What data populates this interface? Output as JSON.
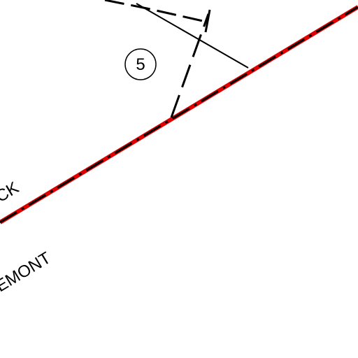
{
  "map": {
    "parcel_label": "5",
    "street_labels": [
      "CK",
      "EMONT"
    ]
  }
}
